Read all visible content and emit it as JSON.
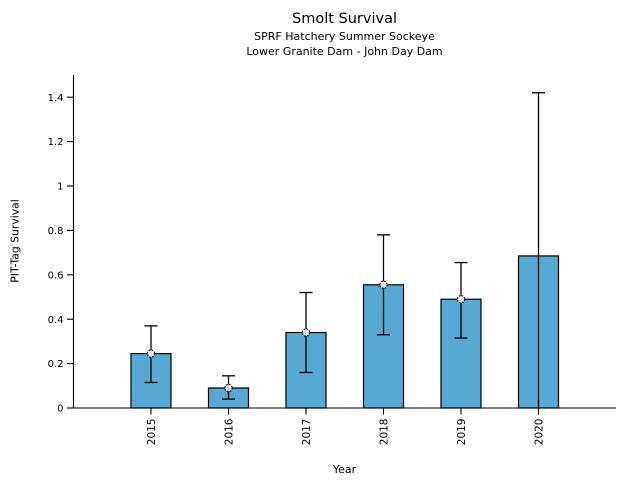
{
  "chart_data": {
    "type": "bar",
    "title": "Smolt Survival",
    "subtitle_line1": "SPRF Hatchery Summer Sockeye",
    "subtitle_line2": "Lower Granite Dam - John Day Dam",
    "xlabel": "Year",
    "ylabel": "PIT-Tag Survival",
    "categories": [
      "2015",
      "2016",
      "2017",
      "2018",
      "2019",
      "2020"
    ],
    "values": [
      0.245,
      0.09,
      0.34,
      0.555,
      0.49,
      0.685
    ],
    "error_low": [
      0.115,
      0.04,
      0.16,
      0.33,
      0.315,
      0.0
    ],
    "error_high": [
      0.37,
      0.145,
      0.52,
      0.78,
      0.655,
      1.42
    ],
    "point_markers": [
      true,
      true,
      true,
      true,
      true,
      false
    ],
    "ylim": [
      0,
      1.5
    ],
    "yticks": [
      0,
      0.2,
      0.4,
      0.6,
      0.8,
      1,
      1.2,
      1.4
    ],
    "ytick_labels": [
      "0",
      "0.2",
      "0.4",
      "0.6",
      "0.8",
      "1",
      "1.2",
      "1.4"
    ],
    "grid": false,
    "legend": null,
    "bar_color": "#57a8d3",
    "bar_edge_color": "#000000",
    "error_bar_color": "#000000",
    "axis_color": "#000000",
    "background_color": "#ffffff"
  }
}
